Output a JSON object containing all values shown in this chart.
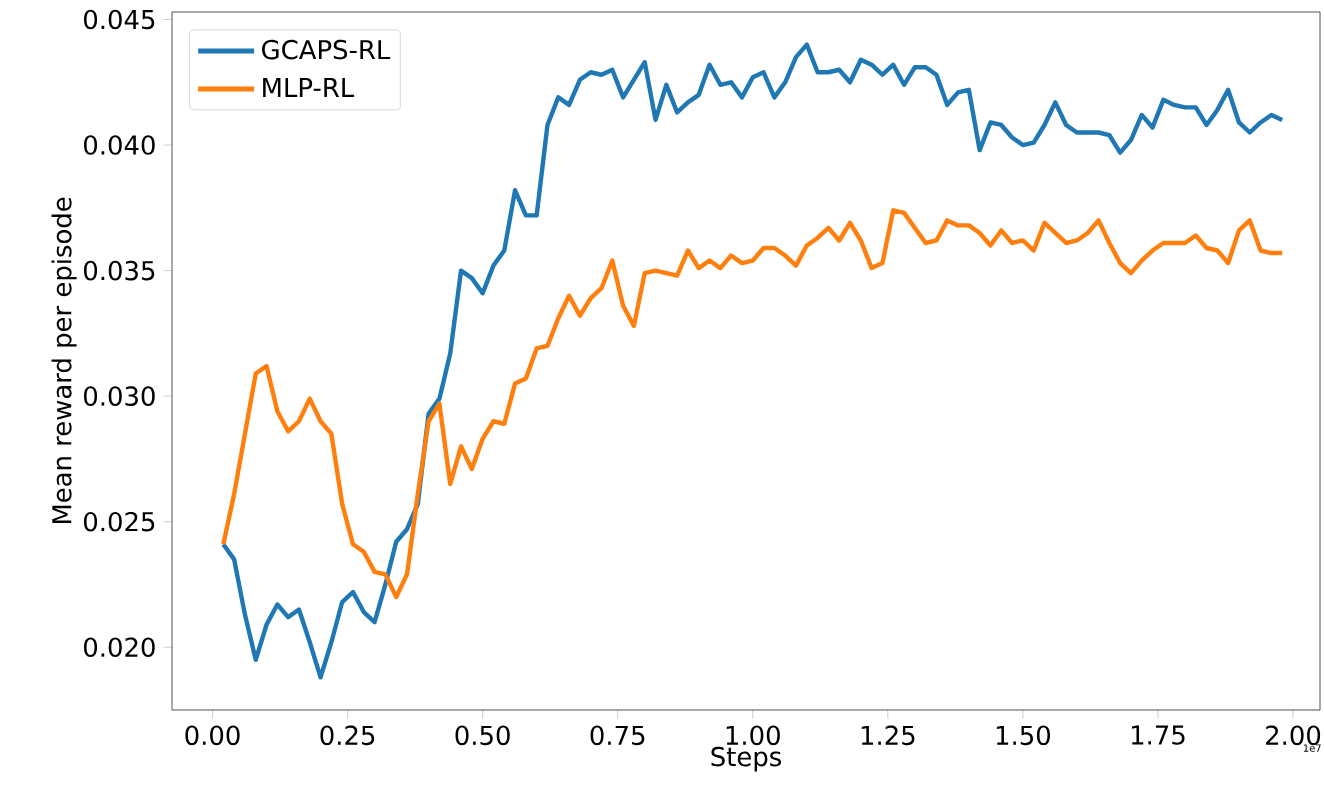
{
  "chart_data": {
    "type": "line",
    "xlabel": "Steps",
    "ylabel": "Mean reward per episode",
    "x": [
      0.02,
      0.04,
      0.06,
      0.08,
      0.1,
      0.12,
      0.14,
      0.16,
      0.18,
      0.2,
      0.22,
      0.24,
      0.26,
      0.28,
      0.3,
      0.32,
      0.34,
      0.36,
      0.38,
      0.4,
      0.42,
      0.44,
      0.46,
      0.48,
      0.5,
      0.52,
      0.54,
      0.56,
      0.58,
      0.6,
      0.62,
      0.64,
      0.66,
      0.68,
      0.7,
      0.72,
      0.74,
      0.76,
      0.78,
      0.8,
      0.82,
      0.84,
      0.86,
      0.88,
      0.9,
      0.92,
      0.94,
      0.96,
      0.98,
      1.0,
      1.02,
      1.04,
      1.06,
      1.08,
      1.1,
      1.12,
      1.14,
      1.16,
      1.18,
      1.2,
      1.22,
      1.24,
      1.26,
      1.28,
      1.3,
      1.32,
      1.34,
      1.36,
      1.38,
      1.4,
      1.42,
      1.44,
      1.46,
      1.48,
      1.5,
      1.52,
      1.54,
      1.56,
      1.58,
      1.6,
      1.62,
      1.64,
      1.66,
      1.68,
      1.7,
      1.72,
      1.74,
      1.76,
      1.78,
      1.8,
      1.82,
      1.84,
      1.86,
      1.88,
      1.9,
      1.92,
      1.94,
      1.96,
      1.98
    ],
    "series": [
      {
        "name": "GCAPS-RL",
        "color": "#1f77b4",
        "values": [
          0.0241,
          0.0235,
          0.0213,
          0.0195,
          0.0209,
          0.0217,
          0.0212,
          0.0215,
          0.0202,
          0.0188,
          0.0202,
          0.0218,
          0.0222,
          0.0214,
          0.021,
          0.0225,
          0.0242,
          0.0247,
          0.0257,
          0.0293,
          0.0299,
          0.0317,
          0.035,
          0.0347,
          0.0341,
          0.0352,
          0.0358,
          0.0382,
          0.0372,
          0.0372,
          0.0408,
          0.0419,
          0.0416,
          0.0426,
          0.0429,
          0.0428,
          0.043,
          0.0419,
          0.0426,
          0.0433,
          0.041,
          0.0424,
          0.0413,
          0.0417,
          0.042,
          0.0432,
          0.0424,
          0.0425,
          0.0419,
          0.0427,
          0.0429,
          0.0419,
          0.0425,
          0.0435,
          0.044,
          0.0429,
          0.0429,
          0.043,
          0.0425,
          0.0434,
          0.0432,
          0.0428,
          0.0432,
          0.0424,
          0.0431,
          0.0431,
          0.0428,
          0.0416,
          0.0421,
          0.0422,
          0.0398,
          0.0409,
          0.0408,
          0.0403,
          0.04,
          0.0401,
          0.0408,
          0.0417,
          0.0408,
          0.0405,
          0.0405,
          0.0405,
          0.0404,
          0.0397,
          0.0402,
          0.0412,
          0.0407,
          0.0418,
          0.0416,
          0.0415,
          0.0415,
          0.0408,
          0.0414,
          0.0422,
          0.0409,
          0.0405,
          0.0409,
          0.0412,
          0.041
        ]
      },
      {
        "name": "MLP-RL",
        "color": "#ff7f0e",
        "values": [
          0.0241,
          0.0261,
          0.0285,
          0.0309,
          0.0312,
          0.0294,
          0.0286,
          0.029,
          0.0299,
          0.029,
          0.0285,
          0.0257,
          0.0241,
          0.0238,
          0.023,
          0.0229,
          0.022,
          0.0229,
          0.0261,
          0.029,
          0.0297,
          0.0265,
          0.028,
          0.0271,
          0.0283,
          0.029,
          0.0289,
          0.0305,
          0.0307,
          0.0319,
          0.032,
          0.0331,
          0.034,
          0.0332,
          0.0339,
          0.0343,
          0.0354,
          0.0336,
          0.0328,
          0.0349,
          0.035,
          0.0349,
          0.0348,
          0.0358,
          0.0351,
          0.0354,
          0.0351,
          0.0356,
          0.0353,
          0.0354,
          0.0359,
          0.0359,
          0.0356,
          0.0352,
          0.036,
          0.0363,
          0.0367,
          0.0362,
          0.0369,
          0.0362,
          0.0351,
          0.0353,
          0.0374,
          0.0373,
          0.0367,
          0.0361,
          0.0362,
          0.037,
          0.0368,
          0.0368,
          0.0365,
          0.036,
          0.0366,
          0.0361,
          0.0362,
          0.0358,
          0.0369,
          0.0365,
          0.0361,
          0.0362,
          0.0365,
          0.037,
          0.0361,
          0.0353,
          0.0349,
          0.0354,
          0.0358,
          0.0361,
          0.0361,
          0.0361,
          0.0364,
          0.0359,
          0.0358,
          0.0353,
          0.0366,
          0.037,
          0.0358,
          0.0357,
          0.0357
        ]
      }
    ],
    "xlim": [
      -0.075,
      2.05
    ],
    "ylim": [
      0.0175,
      0.0453
    ],
    "xticks": [
      {
        "value": 0,
        "label": "0.00"
      },
      {
        "value": 0.25,
        "label": "0.25"
      },
      {
        "value": 0.5,
        "label": "0.50"
      },
      {
        "value": 0.75,
        "label": "0.75"
      },
      {
        "value": 1,
        "label": "1.00"
      },
      {
        "value": 1.25,
        "label": "1.25"
      },
      {
        "value": 1.5,
        "label": "1.50"
      },
      {
        "value": 1.75,
        "label": "1.75"
      },
      {
        "value": 2,
        "label": "2.00"
      }
    ],
    "yticks": [
      {
        "value": 0.02,
        "label": "0.020"
      },
      {
        "value": 0.025,
        "label": "0.025"
      },
      {
        "value": 0.03,
        "label": "0.030"
      },
      {
        "value": 0.035,
        "label": "0.035"
      },
      {
        "value": 0.04,
        "label": "0.040"
      },
      {
        "value": 0.045,
        "label": "0.045"
      }
    ],
    "annotations": [
      "1e7"
    ],
    "legend": "top left",
    "grid": false,
    "line_style": "solid"
  }
}
